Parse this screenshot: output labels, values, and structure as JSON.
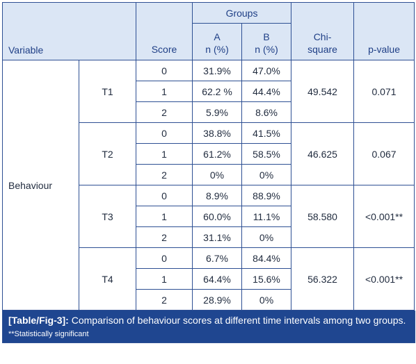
{
  "header": {
    "variable": "Variable",
    "score": "Score",
    "groups": "Groups",
    "group_a": [
      "A",
      "n (%)"
    ],
    "group_b": [
      "B",
      "n (%)"
    ],
    "chi_square": [
      "Chi-",
      "square"
    ],
    "p_value": "p-value"
  },
  "variable_name": "Behaviour",
  "blocks": [
    {
      "time": "T1",
      "chi": "49.542",
      "p": "0.071",
      "rows": [
        {
          "score": "0",
          "a": "31.9%",
          "b": "47.0%"
        },
        {
          "score": "1",
          "a": "62.2 %",
          "b": "44.4%"
        },
        {
          "score": "2",
          "a": "5.9%",
          "b": "8.6%"
        }
      ]
    },
    {
      "time": "T2",
      "chi": "46.625",
      "p": "0.067",
      "rows": [
        {
          "score": "0",
          "a": "38.8%",
          "b": "41.5%"
        },
        {
          "score": "1",
          "a": "61.2%",
          "b": "58.5%"
        },
        {
          "score": "2",
          "a": "0%",
          "b": "0%"
        }
      ]
    },
    {
      "time": "T3",
      "chi": "58.580",
      "p": "<0.001**",
      "rows": [
        {
          "score": "0",
          "a": "8.9%",
          "b": "88.9%"
        },
        {
          "score": "1",
          "a": "60.0%",
          "b": "11.1%"
        },
        {
          "score": "2",
          "a": "31.1%",
          "b": "0%"
        }
      ]
    },
    {
      "time": "T4",
      "chi": "56.322",
      "p": "<0.001**",
      "rows": [
        {
          "score": "0",
          "a": "6.7%",
          "b": "84.4%"
        },
        {
          "score": "1",
          "a": "64.4%",
          "b": "15.6%"
        },
        {
          "score": "2",
          "a": "28.9%",
          "b": "0%"
        }
      ]
    }
  ],
  "caption": {
    "label": "[Table/Fig-3]:",
    "text": " Comparison of behaviour scores at different time intervals among two groups.",
    "note": "**Statistically significant"
  },
  "colors": {
    "header_bg": "#dbe6f5",
    "border": "#2d4f93",
    "caption_bg": "#1f4690"
  }
}
